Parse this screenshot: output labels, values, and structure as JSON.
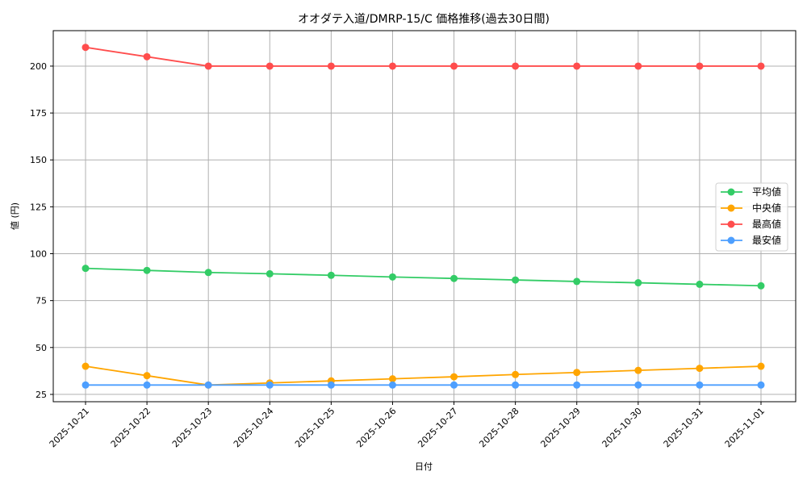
{
  "chart_data": {
    "type": "line",
    "title": "オオダテ入道/DMRP-15/C 価格推移(過去30日間)",
    "xlabel": "日付",
    "ylabel": "値 (円)",
    "categories": [
      "2025-10-21",
      "2025-10-22",
      "2025-10-23",
      "2025-10-24",
      "2025-10-25",
      "2025-10-26",
      "2025-10-27",
      "2025-10-28",
      "2025-10-29",
      "2025-10-30",
      "2025-10-31",
      "2025-11-01"
    ],
    "ylim": [
      21.1,
      218.9
    ],
    "yticks": [
      25,
      50,
      75,
      100,
      125,
      150,
      175,
      200
    ],
    "grid": true,
    "legend_position": "center right",
    "series": [
      {
        "name": "平均値",
        "color": "#33cc66",
        "values": [
          92.2,
          91.1,
          90.0,
          89.3,
          88.5,
          87.6,
          86.8,
          86.0,
          85.2,
          84.5,
          83.7,
          82.9
        ]
      },
      {
        "name": "中央値",
        "color": "#ffa500",
        "values": [
          40.0,
          35.0,
          30.0,
          31.1,
          32.2,
          33.3,
          34.4,
          35.6,
          36.7,
          37.8,
          38.9,
          40.0
        ]
      },
      {
        "name": "最高値",
        "color": "#ff4d4d",
        "values": [
          210,
          205,
          200,
          200,
          200,
          200,
          200,
          200,
          200,
          200,
          200,
          200
        ]
      },
      {
        "name": "最安値",
        "color": "#4d9fff",
        "values": [
          30,
          30,
          30,
          30,
          30,
          30,
          30,
          30,
          30,
          30,
          30,
          30
        ]
      }
    ]
  }
}
